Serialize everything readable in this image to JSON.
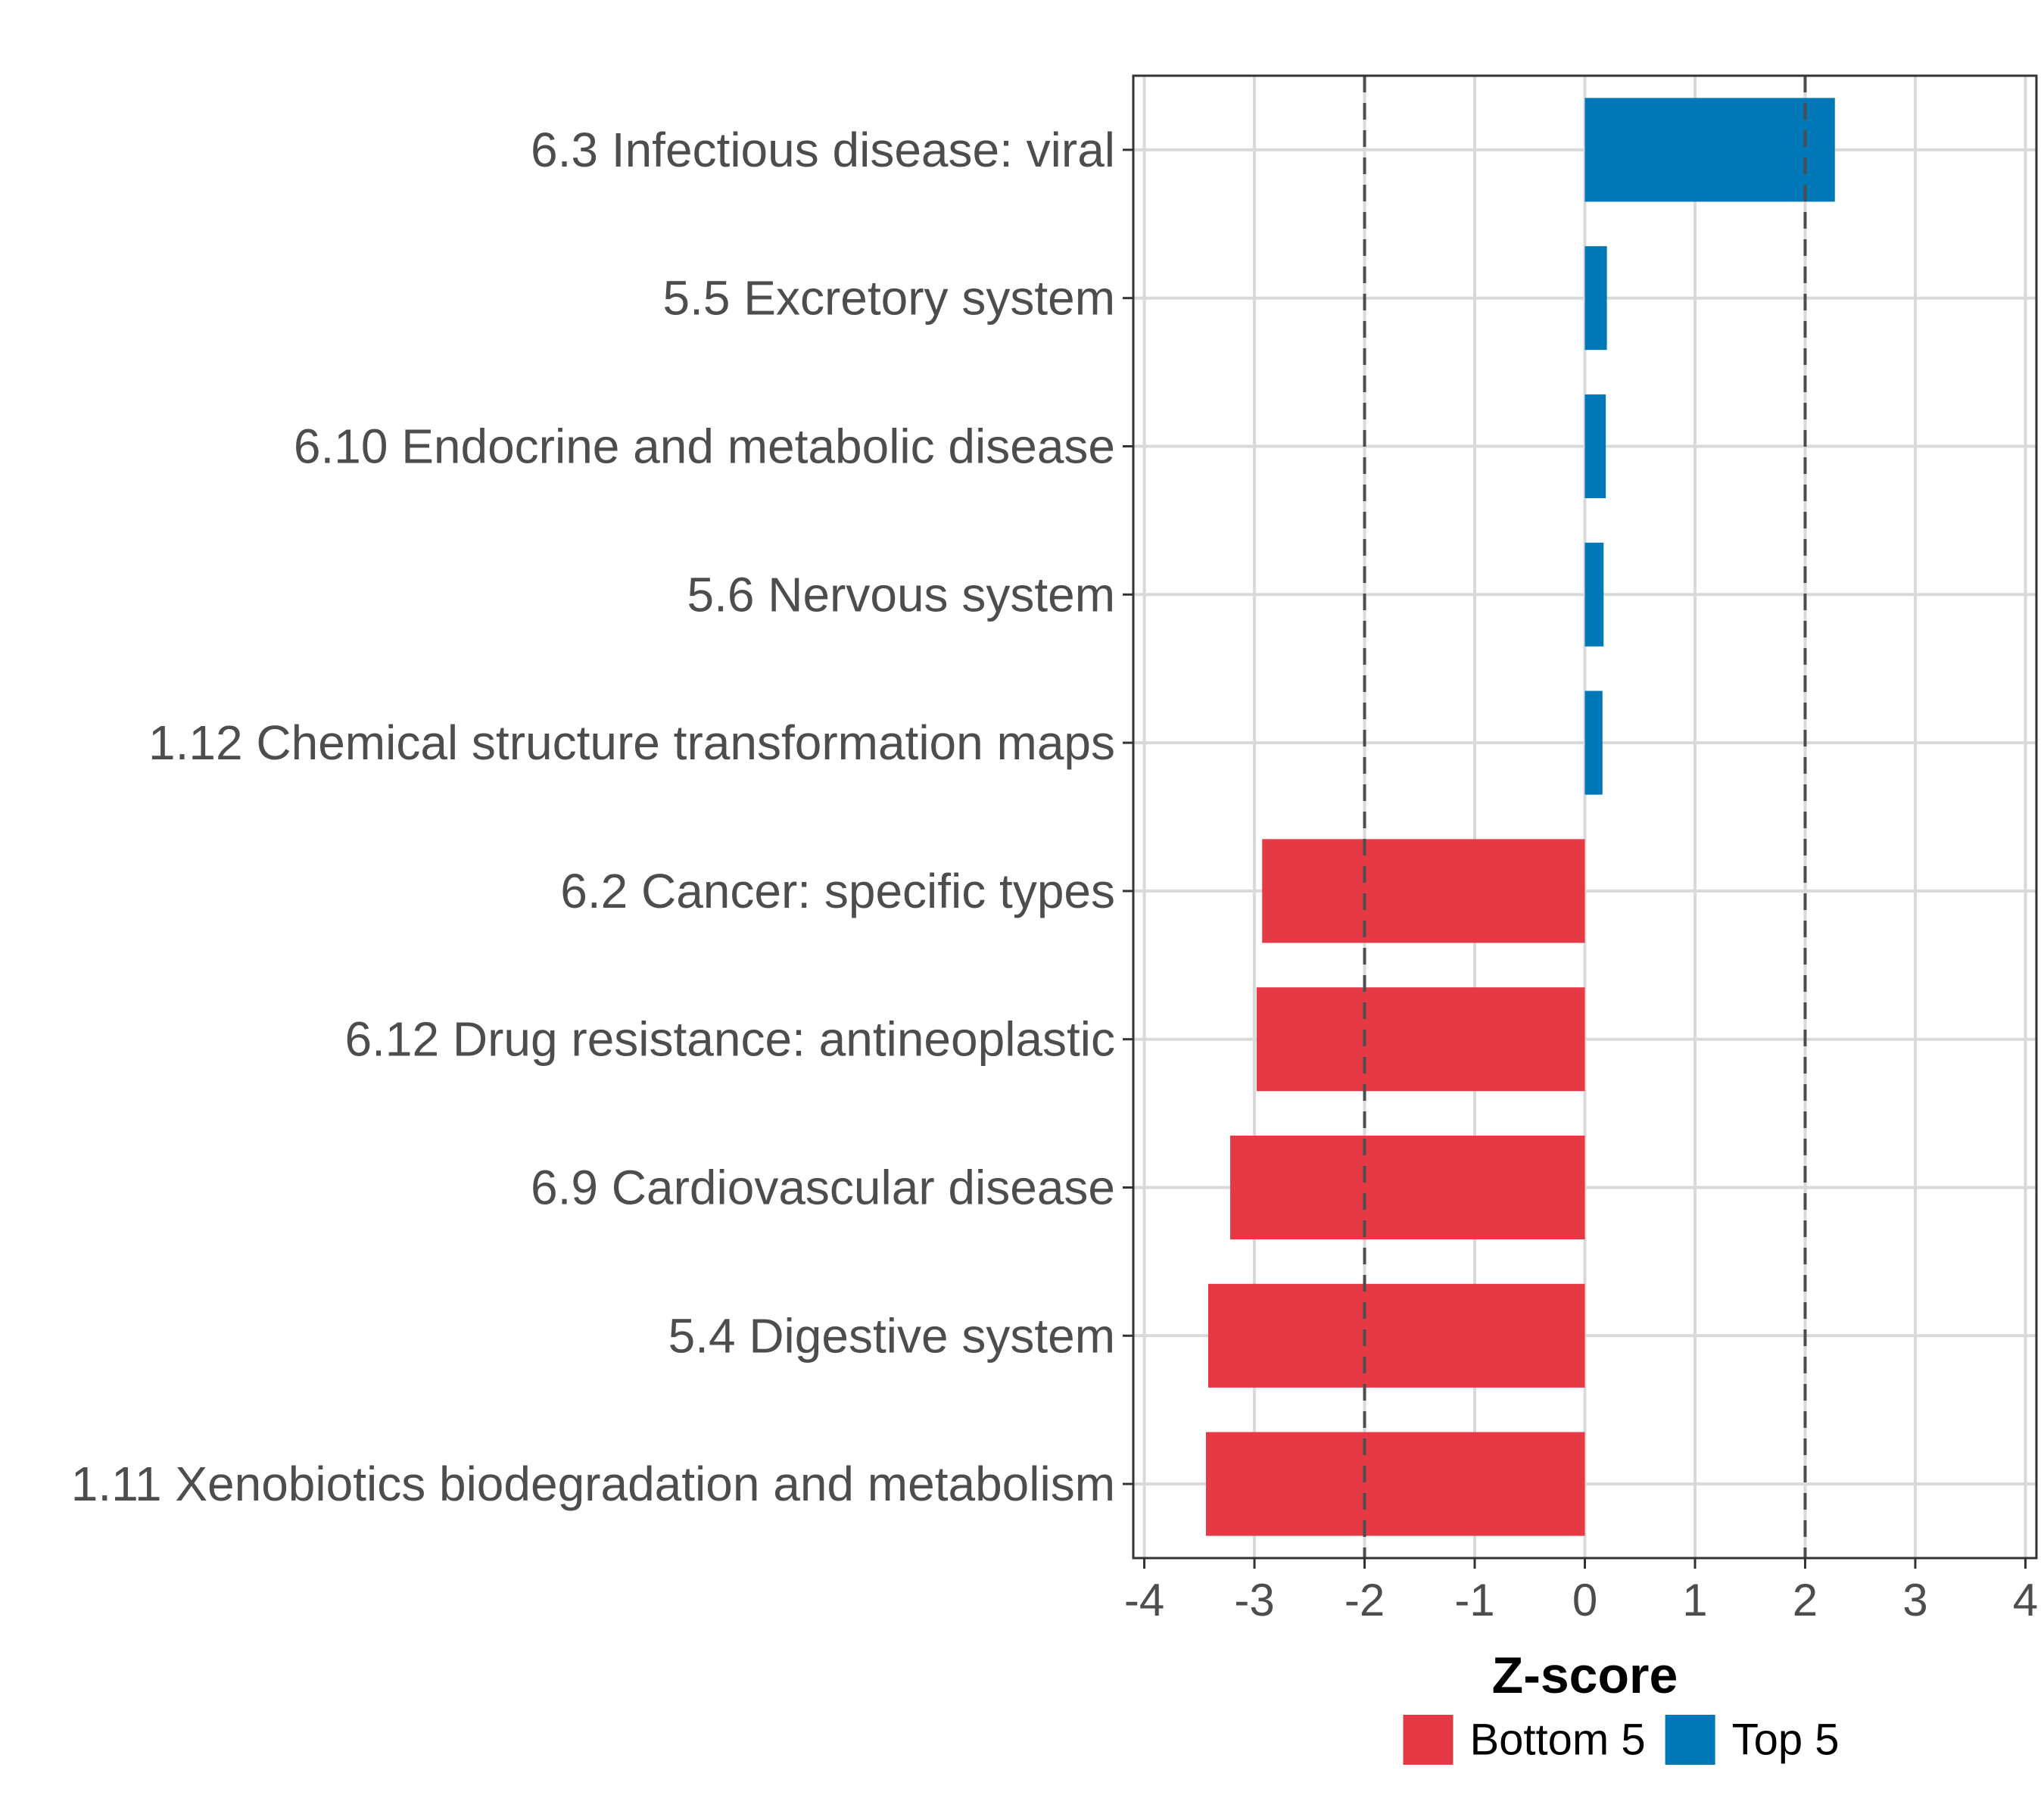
{
  "chart_data": {
    "type": "bar",
    "orientation": "horizontal",
    "title": "",
    "xlabel": "Z-score",
    "ylabel": "",
    "xlim": [
      -4.1,
      4.1
    ],
    "xticks": [
      -4,
      -3,
      -2,
      -1,
      0,
      1,
      2,
      3,
      4
    ],
    "xtick_labels": [
      "-4",
      "-3",
      "-2",
      "-1",
      "0",
      "1",
      "2",
      "3",
      "4"
    ],
    "reference_lines": [
      -2,
      2
    ],
    "grid": true,
    "legend_position": "bottom",
    "categories": [
      "6.3 Infectious disease: viral",
      "5.5 Excretory system",
      "6.10 Endocrine and metabolic disease",
      "5.6 Nervous system",
      "1.12 Chemical structure transformation maps",
      "6.2 Cancer: specific types",
      "6.12 Drug resistance: antineoplastic",
      "6.9 Cardiovascular disease",
      "5.4 Digestive system",
      "1.11 Xenobiotics biodegradation and metabolism"
    ],
    "values": [
      2.27,
      0.2,
      0.19,
      0.17,
      0.16,
      -2.93,
      -2.98,
      -3.22,
      -3.42,
      -3.44
    ],
    "groups": [
      "Top 5",
      "Top 5",
      "Top 5",
      "Top 5",
      "Top 5",
      "Bottom 5",
      "Bottom 5",
      "Bottom 5",
      "Bottom 5",
      "Bottom 5"
    ],
    "legend": [
      {
        "name": "Bottom 5",
        "color": "#e63946"
      },
      {
        "name": "Top 5",
        "color": "#0077b6"
      }
    ]
  }
}
